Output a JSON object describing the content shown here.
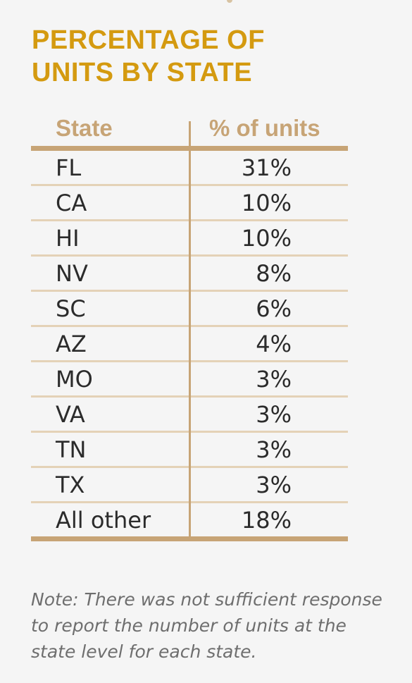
{
  "title": {
    "line1": "PERCENTAGE OF",
    "line2": "UNITS BY STATE"
  },
  "table": {
    "headers": {
      "state": "State",
      "percent": "% of units"
    },
    "rows": [
      {
        "state": "FL",
        "percent": "31%"
      },
      {
        "state": "CA",
        "percent": "10%"
      },
      {
        "state": "HI",
        "percent": "10%"
      },
      {
        "state": "NV",
        "percent": "8%"
      },
      {
        "state": "SC",
        "percent": "6%"
      },
      {
        "state": "AZ",
        "percent": "4%"
      },
      {
        "state": "MO",
        "percent": "3%"
      },
      {
        "state": "VA",
        "percent": "3%"
      },
      {
        "state": "TN",
        "percent": "3%"
      },
      {
        "state": "TX",
        "percent": "3%"
      },
      {
        "state": "All other",
        "percent": "18%"
      }
    ]
  },
  "note": "Note: There was not sufficient response to report the number of units at the state level for each state.",
  "colors": {
    "title": "#d49a10",
    "header": "#c7a476",
    "rule_light": "#e4d2b7",
    "text": "#2b2b2b",
    "note": "#6e6e6e",
    "background": "#f5f5f5"
  }
}
